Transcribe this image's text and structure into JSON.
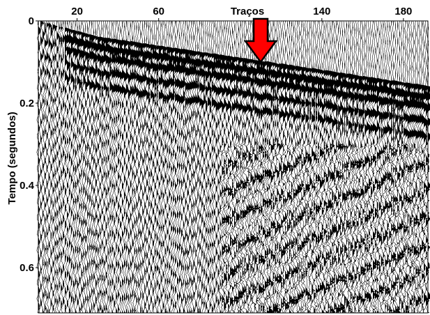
{
  "chart_data": {
    "type": "seismogram",
    "title": "",
    "xlabel": "Traços",
    "ylabel": "Tempo (segundos)",
    "x_ticks": [
      20,
      60,
      140,
      180
    ],
    "y_ticks": [
      0,
      0.2,
      0.4,
      0.6
    ],
    "xlim": [
      1,
      192
    ],
    "ylim": [
      0,
      0.71
    ],
    "trace_count": 192,
    "trace_spacing": 1,
    "first_break": {
      "x": [
        1,
        30,
        105,
        192
      ],
      "time": [
        0.0,
        0.04,
        0.095,
        0.16
      ]
    },
    "reflection_events": [
      {
        "dt": 0.0,
        "strength": 1.0
      },
      {
        "dt": 0.025,
        "strength": 0.85
      },
      {
        "dt": 0.05,
        "strength": 0.75
      },
      {
        "dt": 0.085,
        "strength": 0.6
      },
      {
        "dt": 0.12,
        "strength": 0.5
      }
    ],
    "noise_amplitude": 0.5,
    "annotation": {
      "type": "arrow",
      "target_trace": 110,
      "target_time": 0.1,
      "color": "#ff0000",
      "outline": "#000000"
    },
    "colors": {
      "trace": "#000000",
      "background": "#ffffff",
      "arrow": "#ff0000"
    }
  }
}
